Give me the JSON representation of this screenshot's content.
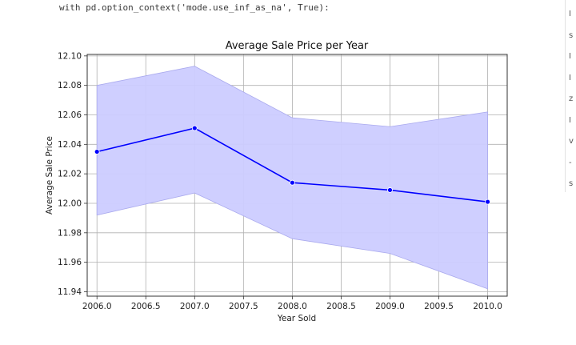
{
  "code": {
    "line": "with pd.option_context('mode.use_inf_as_na', True):"
  },
  "side_panel": {
    "chars": [
      "I",
      "s",
      "I",
      "I",
      "z",
      "I",
      "v",
      "-",
      "s"
    ]
  },
  "chart_data": {
    "type": "line",
    "title": "Average Sale Price per Year",
    "xlabel": "Year Sold",
    "ylabel": "Average Sale Price",
    "xlim": [
      2005.9,
      2010.2
    ],
    "ylim": [
      11.937,
      12.101
    ],
    "xticks": [
      2006.0,
      2006.5,
      2007.0,
      2007.5,
      2008.0,
      2008.5,
      2009.0,
      2009.5,
      2010.0
    ],
    "xtick_labels": [
      "2006.0",
      "2006.5",
      "2007.0",
      "2007.5",
      "2008.0",
      "2008.5",
      "2009.0",
      "2009.5",
      "2010.0"
    ],
    "yticks": [
      11.94,
      11.96,
      11.98,
      12.0,
      12.02,
      12.04,
      12.06,
      12.08,
      12.1
    ],
    "ytick_labels": [
      "11.94",
      "11.96",
      "11.98",
      "12.00",
      "12.02",
      "12.04",
      "12.06",
      "12.08",
      "12.10"
    ],
    "grid": true,
    "series": [
      {
        "x": [
          2006,
          2007,
          2008,
          2009,
          2010
        ],
        "y": [
          12.035,
          12.051,
          12.014,
          12.009,
          12.001
        ],
        "ci_lower": [
          11.992,
          12.007,
          11.976,
          11.966,
          11.942
        ],
        "ci_upper": [
          12.08,
          12.093,
          12.058,
          12.052,
          12.062
        ],
        "color": "#0000ff",
        "band_color": "#ccccff",
        "band_edge_color": "#aaaaee",
        "marker": "circle"
      }
    ]
  }
}
